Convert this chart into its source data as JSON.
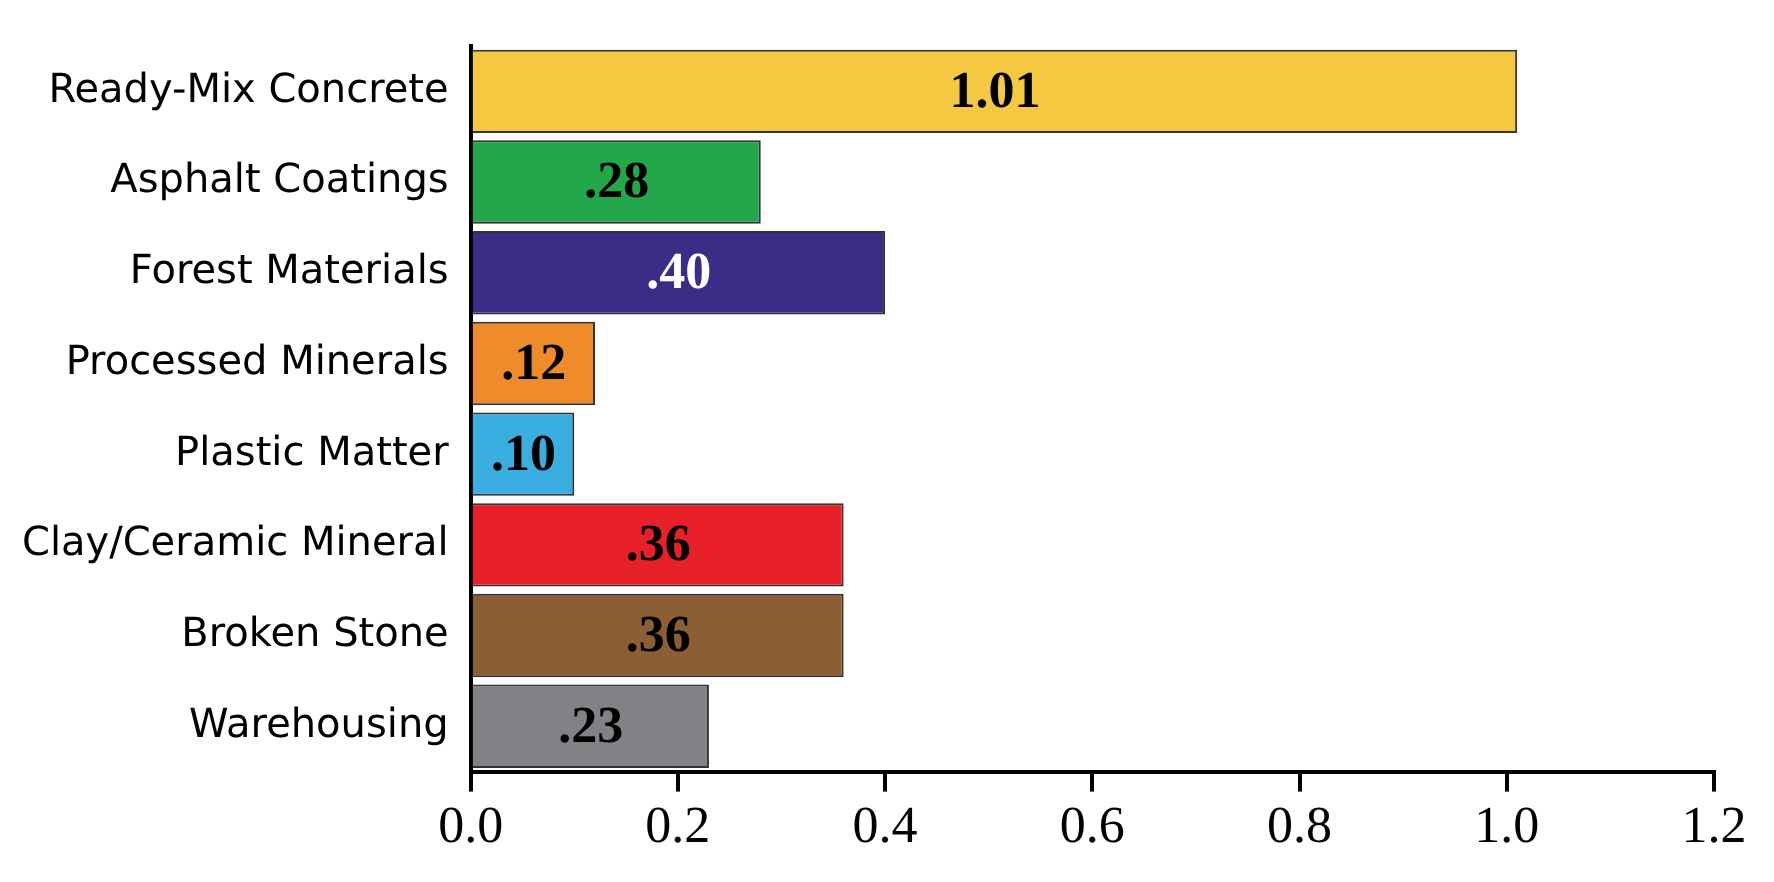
{
  "chart_data": {
    "type": "bar",
    "orientation": "horizontal",
    "categories": [
      "Ready-Mix Concrete",
      "Asphalt Coatings",
      "Forest Materials",
      "Processed Minerals",
      "Plastic Matter",
      "Clay/Ceramic Mineral",
      "Broken Stone",
      "Warehousing"
    ],
    "values": [
      1.01,
      0.28,
      0.4,
      0.12,
      0.1,
      0.36,
      0.36,
      0.23
    ],
    "colors": [
      "#f5c842",
      "#22a84a",
      "#3a2d87",
      "#ee8b2a",
      "#3aaee0",
      "#e8202a",
      "#8b5e34",
      "#808285"
    ],
    "value_labels": [
      "1.01",
      ".28",
      ".40",
      ".12",
      ".10",
      ".36",
      ".36",
      ".23"
    ],
    "xlim": [
      0,
      1.2
    ],
    "xticks": [
      {
        "value": 0,
        "label": "0.0"
      },
      {
        "value": 0.2,
        "label": "0.2"
      },
      {
        "value": 0.4,
        "label": "0.4"
      },
      {
        "value": 0.6,
        "label": "0.6"
      },
      {
        "value": 0.8,
        "label": "0.8"
      },
      {
        "value": 1.0,
        "label": "1.0"
      },
      {
        "value": 1.2,
        "label": "1.2"
      }
    ],
    "grid": false,
    "legend": false
  }
}
